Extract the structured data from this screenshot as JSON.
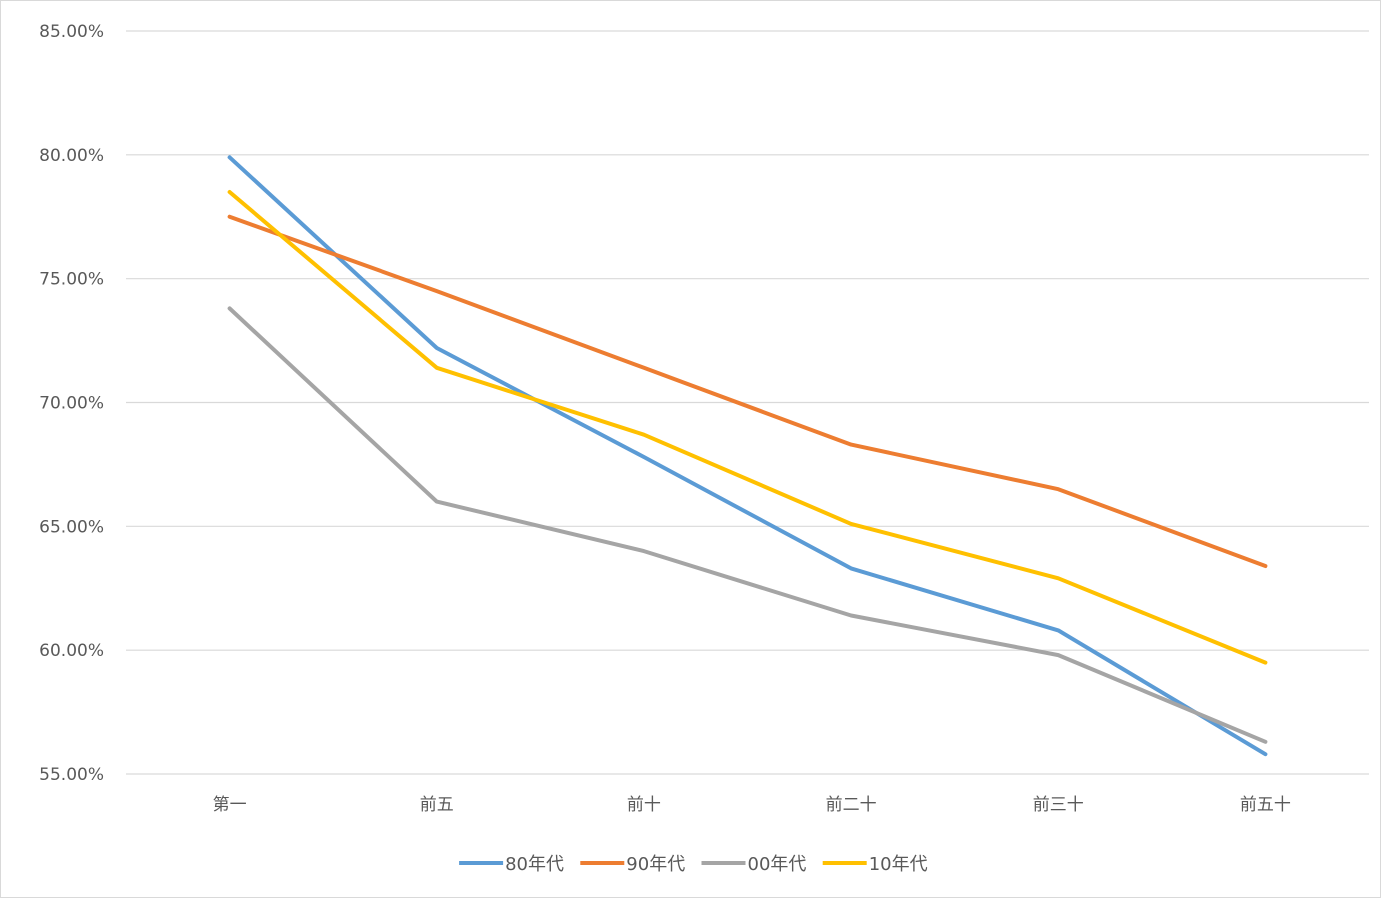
{
  "chart_data": {
    "type": "line",
    "title": "",
    "xlabel": "",
    "ylabel": "",
    "categories": [
      "第一",
      "前五",
      "前十",
      "前二十",
      "前三十",
      "前五十"
    ],
    "ylim": [
      0.55,
      0.85
    ],
    "y_ticks": [
      0.55,
      0.6,
      0.65,
      0.7,
      0.75,
      0.8,
      0.85
    ],
    "y_tick_labels": [
      "55.00%",
      "60.00%",
      "65.00%",
      "70.00%",
      "75.00%",
      "80.00%",
      "85.00%"
    ],
    "grid": true,
    "legend_position": "bottom",
    "series": [
      {
        "name": "80年代",
        "color": "#5b9bd5",
        "values": [
          0.799,
          0.722,
          0.678,
          0.633,
          0.608,
          0.558
        ]
      },
      {
        "name": "90年代",
        "color": "#ed7d31",
        "values": [
          0.775,
          0.745,
          0.714,
          0.683,
          0.665,
          0.634
        ]
      },
      {
        "name": "00年代",
        "color": "#a5a5a5",
        "values": [
          0.738,
          0.66,
          0.64,
          0.614,
          0.598,
          0.563
        ]
      },
      {
        "name": "10年代",
        "color": "#ffc000",
        "values": [
          0.785,
          0.714,
          0.687,
          0.651,
          0.629,
          0.595
        ]
      }
    ]
  }
}
